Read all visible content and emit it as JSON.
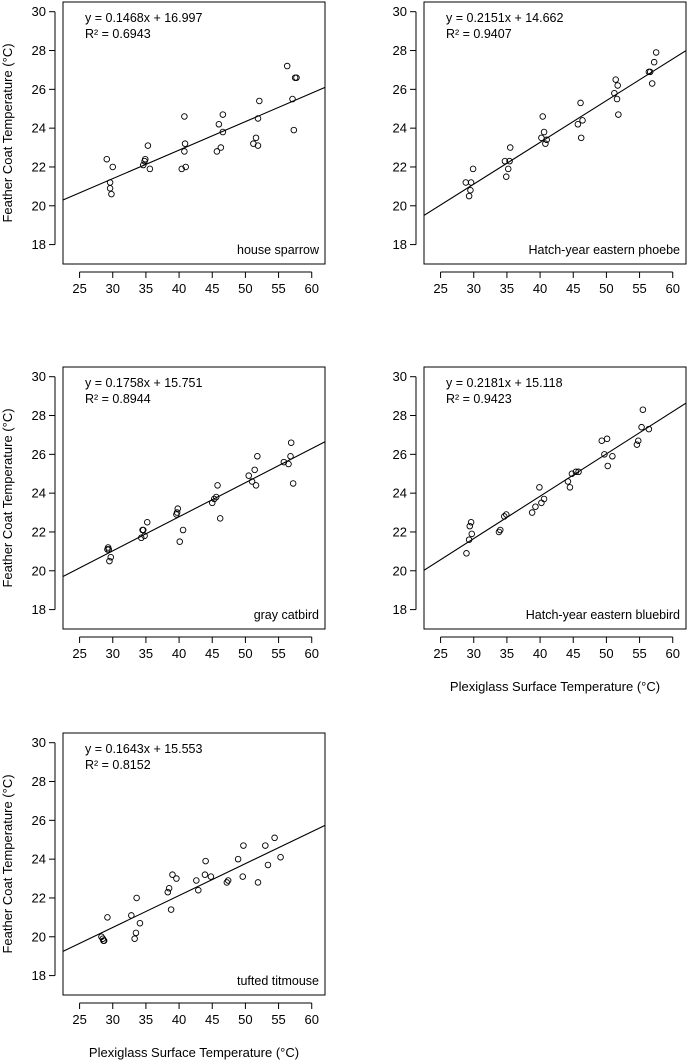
{
  "chart_data": [
    {
      "type": "scatter",
      "species": "house sparrow",
      "equation": "y = 0.1468x + 16.997",
      "r2": "R² = 0.6943",
      "ylabel": "Feather Coat Temperature (°C)",
      "xlabel": "",
      "xlim": [
        22.5,
        62
      ],
      "ylim": [
        17,
        30.5
      ],
      "x_ticks": [
        "25",
        "30",
        "35",
        "40",
        "45",
        "50",
        "55",
        "60"
      ],
      "y_ticks": [
        "18",
        "20",
        "22",
        "24",
        "26",
        "28",
        "30"
      ],
      "trendline": {
        "slope": 0.1468,
        "intercept": 16.997,
        "x_range": [
          22.5,
          62
        ]
      },
      "points": [
        [
          29.1,
          22.4
        ],
        [
          29.6,
          21.2
        ],
        [
          29.6,
          20.9
        ],
        [
          29.8,
          20.6
        ],
        [
          30.0,
          22.0
        ],
        [
          34.6,
          22.1
        ],
        [
          34.8,
          22.3
        ],
        [
          34.9,
          22.4
        ],
        [
          35.3,
          23.1
        ],
        [
          35.6,
          21.9
        ],
        [
          40.4,
          21.9
        ],
        [
          40.8,
          24.6
        ],
        [
          40.8,
          22.8
        ],
        [
          40.9,
          23.2
        ],
        [
          41.0,
          22.0
        ],
        [
          45.7,
          22.8
        ],
        [
          46.0,
          24.2
        ],
        [
          46.3,
          23.0
        ],
        [
          46.6,
          23.8
        ],
        [
          46.6,
          24.7
        ],
        [
          51.2,
          23.2
        ],
        [
          51.6,
          23.5
        ],
        [
          51.9,
          23.1
        ],
        [
          52.1,
          25.4
        ],
        [
          51.9,
          24.5
        ],
        [
          56.3,
          27.2
        ],
        [
          57.1,
          25.5
        ],
        [
          57.3,
          23.9
        ],
        [
          57.5,
          26.6
        ],
        [
          57.7,
          26.6
        ]
      ]
    },
    {
      "type": "scatter",
      "species": "Hatch-year eastern phoebe",
      "equation": "y = 0.2151x + 14.662",
      "r2": "R² = 0.9407",
      "ylabel": "",
      "xlabel": "",
      "xlim": [
        22.5,
        62
      ],
      "ylim": [
        17,
        30.5
      ],
      "x_ticks": [
        "25",
        "30",
        "35",
        "40",
        "45",
        "50",
        "55",
        "60"
      ],
      "y_ticks": [
        "18",
        "20",
        "22",
        "24",
        "26",
        "28",
        "30"
      ],
      "trendline": {
        "slope": 0.2151,
        "intercept": 14.662,
        "x_range": [
          22.5,
          62
        ]
      },
      "points": [
        [
          28.8,
          21.2
        ],
        [
          29.3,
          20.5
        ],
        [
          29.5,
          20.8
        ],
        [
          29.6,
          21.2
        ],
        [
          29.9,
          21.9
        ],
        [
          34.7,
          22.3
        ],
        [
          34.9,
          21.5
        ],
        [
          35.2,
          21.9
        ],
        [
          35.4,
          22.3
        ],
        [
          35.5,
          23.0
        ],
        [
          40.2,
          23.5
        ],
        [
          40.4,
          24.6
        ],
        [
          40.6,
          23.8
        ],
        [
          40.8,
          23.2
        ],
        [
          41.0,
          23.4
        ],
        [
          45.7,
          24.2
        ],
        [
          46.1,
          25.3
        ],
        [
          46.2,
          23.5
        ],
        [
          46.4,
          24.4
        ],
        [
          51.2,
          25.8
        ],
        [
          51.4,
          26.5
        ],
        [
          51.6,
          25.5
        ],
        [
          51.7,
          26.2
        ],
        [
          51.8,
          24.7
        ],
        [
          56.4,
          26.9
        ],
        [
          56.6,
          26.9
        ],
        [
          56.9,
          26.3
        ],
        [
          57.2,
          27.4
        ],
        [
          57.5,
          27.9
        ]
      ]
    },
    {
      "type": "scatter",
      "species": "gray catbird",
      "equation": "y = 0.1758x + 15.751",
      "r2": "R² = 0.8944",
      "ylabel": "Feather Coat Temperature (°C)",
      "xlabel": "",
      "xlim": [
        22.5,
        62
      ],
      "ylim": [
        17,
        30.5
      ],
      "x_ticks": [
        "25",
        "30",
        "35",
        "40",
        "45",
        "50",
        "55",
        "60"
      ],
      "y_ticks": [
        "18",
        "20",
        "22",
        "24",
        "26",
        "28",
        "30"
      ],
      "trendline": {
        "slope": 0.1758,
        "intercept": 15.751,
        "x_range": [
          22.5,
          62
        ]
      },
      "points": [
        [
          29.2,
          21.1
        ],
        [
          29.3,
          21.2
        ],
        [
          29.4,
          21.1
        ],
        [
          29.5,
          20.5
        ],
        [
          29.7,
          20.7
        ],
        [
          34.3,
          21.7
        ],
        [
          34.5,
          22.1
        ],
        [
          34.6,
          22.1
        ],
        [
          34.8,
          21.8
        ],
        [
          35.2,
          22.5
        ],
        [
          39.6,
          22.9
        ],
        [
          39.7,
          23.0
        ],
        [
          39.8,
          23.2
        ],
        [
          40.1,
          21.5
        ],
        [
          40.6,
          22.1
        ],
        [
          45.0,
          23.5
        ],
        [
          45.3,
          23.7
        ],
        [
          45.6,
          23.8
        ],
        [
          45.8,
          24.4
        ],
        [
          46.2,
          22.7
        ],
        [
          50.5,
          24.9
        ],
        [
          51.0,
          24.6
        ],
        [
          51.4,
          25.2
        ],
        [
          51.6,
          24.4
        ],
        [
          51.8,
          25.9
        ],
        [
          55.8,
          25.6
        ],
        [
          56.5,
          25.5
        ],
        [
          56.8,
          25.9
        ],
        [
          56.9,
          26.6
        ],
        [
          57.2,
          24.5
        ]
      ]
    },
    {
      "type": "scatter",
      "species": "Hatch-year eastern bluebird",
      "equation": "y = 0.2181x + 15.118",
      "r2": "R² = 0.9423",
      "ylabel": "",
      "xlabel": "Plexiglass Surface Temperature (°C)",
      "xlim": [
        22.5,
        62
      ],
      "ylim": [
        17,
        30.5
      ],
      "x_ticks": [
        "25",
        "30",
        "35",
        "40",
        "45",
        "50",
        "55",
        "60"
      ],
      "y_ticks": [
        "18",
        "20",
        "22",
        "24",
        "26",
        "28",
        "30"
      ],
      "trendline": {
        "slope": 0.2181,
        "intercept": 15.118,
        "x_range": [
          22.5,
          62
        ]
      },
      "points": [
        [
          28.9,
          20.9
        ],
        [
          29.3,
          21.6
        ],
        [
          29.4,
          22.3
        ],
        [
          29.6,
          22.5
        ],
        [
          29.7,
          21.9
        ],
        [
          33.8,
          22.0
        ],
        [
          34.0,
          22.1
        ],
        [
          34.6,
          22.8
        ],
        [
          34.9,
          22.9
        ],
        [
          38.8,
          23.0
        ],
        [
          39.3,
          23.3
        ],
        [
          39.9,
          24.3
        ],
        [
          40.2,
          23.5
        ],
        [
          40.6,
          23.7
        ],
        [
          44.2,
          24.6
        ],
        [
          44.5,
          24.3
        ],
        [
          44.8,
          25.0
        ],
        [
          45.4,
          25.1
        ],
        [
          45.8,
          25.1
        ],
        [
          49.3,
          26.7
        ],
        [
          49.7,
          26.0
        ],
        [
          50.1,
          26.8
        ],
        [
          50.2,
          25.4
        ],
        [
          50.9,
          25.9
        ],
        [
          54.6,
          26.5
        ],
        [
          54.8,
          26.7
        ],
        [
          55.3,
          27.4
        ],
        [
          55.5,
          28.3
        ],
        [
          56.4,
          27.3
        ]
      ]
    },
    {
      "type": "scatter",
      "species": "tufted titmouse",
      "equation": "y = 0.1643x + 15.553",
      "r2": "R² = 0.8152",
      "ylabel": "Feather Coat Temperature (°C)",
      "xlabel": "Plexiglass Surface Temperature (°C)",
      "xlim": [
        22.5,
        62
      ],
      "ylim": [
        17,
        30.5
      ],
      "x_ticks": [
        "25",
        "30",
        "35",
        "40",
        "45",
        "50",
        "55",
        "60"
      ],
      "y_ticks": [
        "18",
        "20",
        "22",
        "24",
        "26",
        "28",
        "30"
      ],
      "trendline": {
        "slope": 0.1643,
        "intercept": 15.553,
        "x_range": [
          22.5,
          62
        ]
      },
      "points": [
        [
          28.3,
          20.0
        ],
        [
          28.5,
          19.9
        ],
        [
          28.6,
          19.8
        ],
        [
          28.7,
          19.8
        ],
        [
          29.2,
          21.0
        ],
        [
          32.8,
          21.1
        ],
        [
          33.3,
          19.9
        ],
        [
          33.5,
          20.2
        ],
        [
          33.6,
          22.0
        ],
        [
          34.1,
          20.7
        ],
        [
          38.3,
          22.3
        ],
        [
          38.5,
          22.5
        ],
        [
          38.8,
          21.4
        ],
        [
          39.0,
          23.2
        ],
        [
          39.6,
          23.0
        ],
        [
          42.6,
          22.9
        ],
        [
          42.9,
          22.4
        ],
        [
          43.9,
          23.2
        ],
        [
          44.0,
          23.9
        ],
        [
          44.8,
          23.1
        ],
        [
          47.2,
          22.8
        ],
        [
          47.4,
          22.9
        ],
        [
          48.9,
          24.0
        ],
        [
          49.6,
          23.1
        ],
        [
          49.7,
          24.7
        ],
        [
          51.9,
          22.8
        ],
        [
          53.0,
          24.7
        ],
        [
          53.4,
          23.7
        ],
        [
          54.4,
          25.1
        ],
        [
          55.3,
          24.1
        ]
      ]
    }
  ]
}
